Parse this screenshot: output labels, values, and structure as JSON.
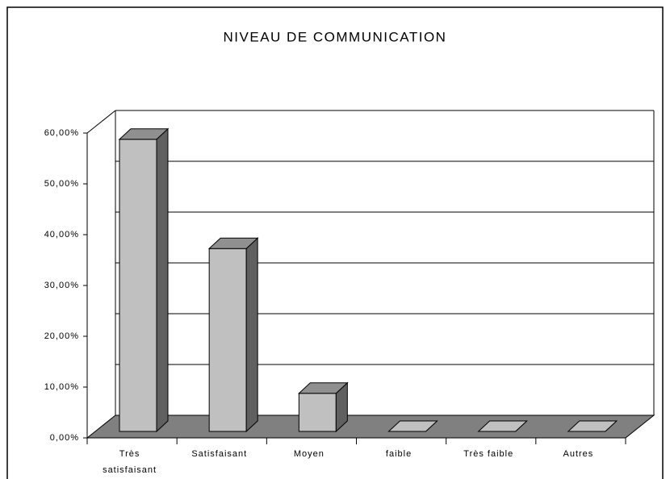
{
  "chart_data": {
    "type": "bar3d",
    "title": "NIVEAU DE COMMUNICATION",
    "categories": [
      "Très satisfaisant",
      "Satisfaisant",
      "Moyen",
      "faible",
      "Très faible",
      "Autres"
    ],
    "values": [
      57.5,
      36,
      7.5,
      0,
      0,
      0
    ],
    "color": "#c0c0c0",
    "ylim": [
      0,
      60
    ],
    "yticks": [
      {
        "value": 0,
        "label": "0,00%"
      },
      {
        "value": 10,
        "label": "10,00%"
      },
      {
        "value": 20,
        "label": "20,00%"
      },
      {
        "value": 30,
        "label": "30,00%"
      },
      {
        "value": 40,
        "label": "40,00%"
      },
      {
        "value": 50,
        "label": "50,00%"
      },
      {
        "value": 60,
        "label": "60,00%"
      }
    ],
    "grid": true
  }
}
